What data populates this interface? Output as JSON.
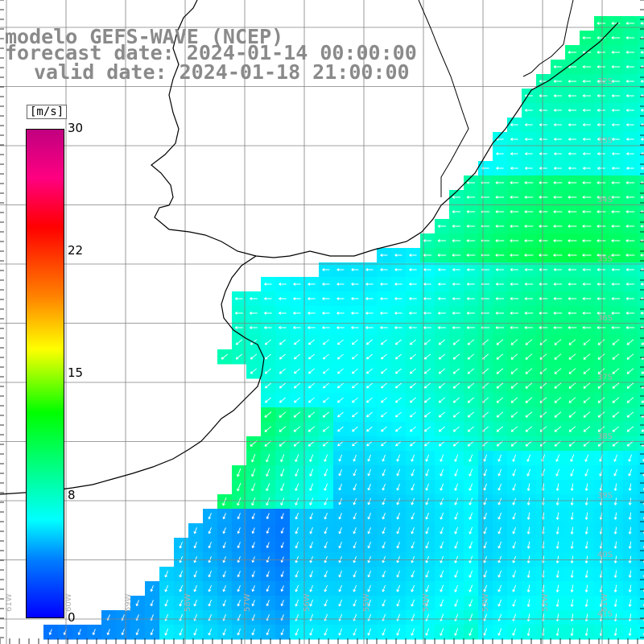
{
  "title": {
    "line1": "modelo GEFS-WAVE (NCEP)",
    "line2": "forecast date: 2024-01-14 00:00:00",
    "line3": "valid date: 2024-01-18 21:00:00"
  },
  "colorbar": {
    "units": "[m/s]",
    "ticks": [
      "30",
      "22",
      "15",
      "8",
      "0"
    ],
    "tick_values": [
      30,
      22,
      15,
      8,
      0
    ]
  },
  "lat_labels": [
    "32S",
    "33S",
    "34S",
    "35S",
    "36S",
    "37S",
    "38S",
    "39S",
    "40S",
    "41S"
  ],
  "lon_labels": [
    "61W",
    "60W",
    "59W",
    "58W",
    "57W",
    "56W",
    "55W",
    "54W",
    "53W",
    "52W",
    "51W"
  ],
  "colors": {
    "land": "#ffffff",
    "grid": "#808080",
    "coast": "#000000",
    "arrows": "#ffffff"
  }
}
